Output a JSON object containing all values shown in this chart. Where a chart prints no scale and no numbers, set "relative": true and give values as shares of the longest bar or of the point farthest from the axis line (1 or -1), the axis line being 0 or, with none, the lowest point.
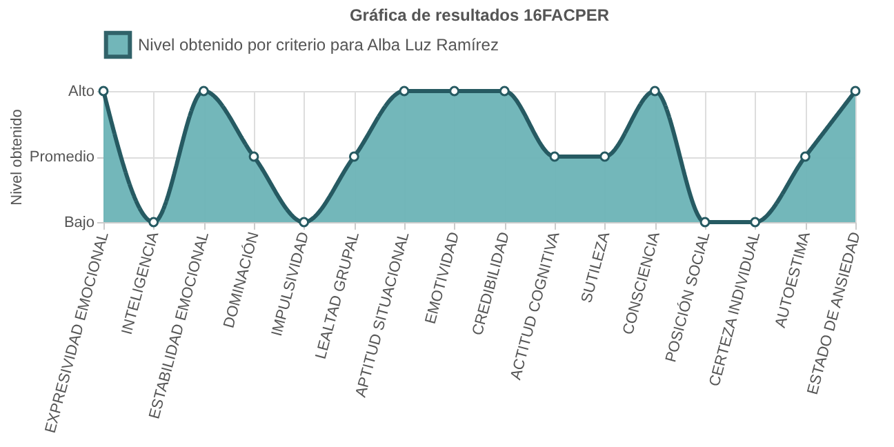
{
  "chart_data": {
    "type": "area",
    "title": "Gráfica de resultados 16FACPER",
    "ylabel": "Nivel obtenido",
    "relative": true,
    "categories": [
      "EXPRESIVIDAD EMOCIONAL",
      "INTELIGENCIA",
      "ESTABILIDAD EMOCIONAL",
      "DOMINACIÓN",
      "IMPULSIVIDAD",
      "LEALTAD GRUPAL",
      "APTITUD SITUACIONAL",
      "EMOTIVIDAD",
      "CREDIBILIDAD",
      "ACTITUD COGNITIVA",
      "SUTILEZA",
      "CONSCIENCIA",
      "POSICIÓN SOCIAL",
      "CERTEZA INDIVIDUAL",
      "AUTOESTIMA",
      "ESTADO DE ANSIEDAD"
    ],
    "series": [
      {
        "name": "Nivel obtenido por criterio para Alba Luz Ramírez",
        "color": "#6bb3b6",
        "values": [
          1,
          0,
          1,
          0.5,
          0,
          0.5,
          1,
          1,
          1,
          0.5,
          0.5,
          1,
          0,
          0,
          0.5,
          1
        ]
      }
    ],
    "annotations": [
      "Bajo",
      "Promedio",
      "Alto"
    ],
    "grid": true,
    "legend": "top",
    "marker": "circle",
    "line_style": "solid"
  }
}
